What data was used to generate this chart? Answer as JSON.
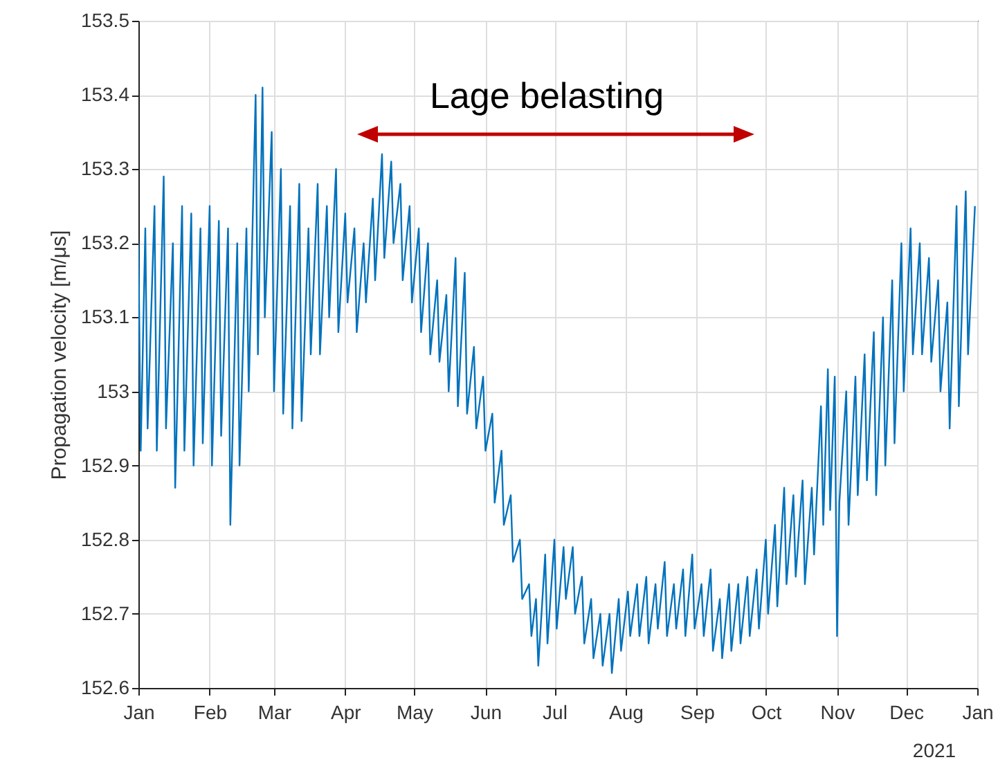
{
  "chart_data": {
    "type": "line",
    "ylabel": "Propagation velocity [m/μs]",
    "annotations": [
      "Lage belasting",
      "2021"
    ],
    "xlim": [
      "2021-01-01",
      "2022-01-01"
    ],
    "xticks": [
      {
        "value": "2021-01-01",
        "label": "Jan"
      },
      {
        "value": "2021-02-01",
        "label": "Feb"
      },
      {
        "value": "2021-03-01",
        "label": "Mar"
      },
      {
        "value": "2021-04-01",
        "label": "Apr"
      },
      {
        "value": "2021-05-01",
        "label": "May"
      },
      {
        "value": "2021-06-01",
        "label": "Jun"
      },
      {
        "value": "2021-07-01",
        "label": "Jul"
      },
      {
        "value": "2021-08-01",
        "label": "Aug"
      },
      {
        "value": "2021-09-01",
        "label": "Sep"
      },
      {
        "value": "2021-10-01",
        "label": "Oct"
      },
      {
        "value": "2021-11-01",
        "label": "Nov"
      },
      {
        "value": "2021-12-01",
        "label": "Dec"
      },
      {
        "value": "2022-01-01",
        "label": "Jan"
      }
    ],
    "ylim": [
      152.6,
      153.5
    ],
    "yticks": [
      152.6,
      152.7,
      152.8,
      152.9,
      153,
      153.1,
      153.2,
      153.3,
      153.4,
      153.5
    ],
    "grid": true,
    "line_style": "solid",
    "series": [
      {
        "color": "#0072bd",
        "x": [
          "2021-01-01",
          "2021-01-02",
          "2021-01-04",
          "2021-01-05",
          "2021-01-08",
          "2021-01-09",
          "2021-01-12",
          "2021-01-13",
          "2021-01-16",
          "2021-01-17",
          "2021-01-20",
          "2021-01-21",
          "2021-01-24",
          "2021-01-25",
          "2021-01-28",
          "2021-01-29",
          "2021-02-01",
          "2021-02-02",
          "2021-02-05",
          "2021-02-06",
          "2021-02-09",
          "2021-02-10",
          "2021-02-13",
          "2021-02-14",
          "2021-02-17",
          "2021-02-18",
          "2021-02-21",
          "2021-02-22",
          "2021-02-24",
          "2021-02-25",
          "2021-02-28",
          "2021-03-01",
          "2021-03-04",
          "2021-03-05",
          "2021-03-08",
          "2021-03-09",
          "2021-03-12",
          "2021-03-13",
          "2021-03-16",
          "2021-03-17",
          "2021-03-20",
          "2021-03-21",
          "2021-03-24",
          "2021-03-25",
          "2021-03-28",
          "2021-03-29",
          "2021-04-01",
          "2021-04-02",
          "2021-04-05",
          "2021-04-06",
          "2021-04-09",
          "2021-04-10",
          "2021-04-13",
          "2021-04-14",
          "2021-04-17",
          "2021-04-18",
          "2021-04-21",
          "2021-04-22",
          "2021-04-25",
          "2021-04-26",
          "2021-04-29",
          "2021-04-30",
          "2021-05-03",
          "2021-05-04",
          "2021-05-07",
          "2021-05-08",
          "2021-05-11",
          "2021-05-12",
          "2021-05-15",
          "2021-05-16",
          "2021-05-19",
          "2021-05-20",
          "2021-05-23",
          "2021-05-24",
          "2021-05-27",
          "2021-05-28",
          "2021-05-31",
          "2021-06-01",
          "2021-06-04",
          "2021-06-05",
          "2021-06-08",
          "2021-06-09",
          "2021-06-12",
          "2021-06-13",
          "2021-06-16",
          "2021-06-17",
          "2021-06-20",
          "2021-06-21",
          "2021-06-23",
          "2021-06-24",
          "2021-06-27",
          "2021-06-28",
          "2021-07-01",
          "2021-07-02",
          "2021-07-05",
          "2021-07-06",
          "2021-07-09",
          "2021-07-10",
          "2021-07-13",
          "2021-07-14",
          "2021-07-17",
          "2021-07-18",
          "2021-07-21",
          "2021-07-22",
          "2021-07-25",
          "2021-07-26",
          "2021-07-29",
          "2021-07-30",
          "2021-08-02",
          "2021-08-03",
          "2021-08-06",
          "2021-08-07",
          "2021-08-10",
          "2021-08-11",
          "2021-08-14",
          "2021-08-15",
          "2021-08-18",
          "2021-08-19",
          "2021-08-22",
          "2021-08-23",
          "2021-08-26",
          "2021-08-27",
          "2021-08-30",
          "2021-08-31",
          "2021-09-03",
          "2021-09-04",
          "2021-09-07",
          "2021-09-08",
          "2021-09-11",
          "2021-09-12",
          "2021-09-15",
          "2021-09-16",
          "2021-09-19",
          "2021-09-20",
          "2021-09-23",
          "2021-09-24",
          "2021-09-27",
          "2021-09-28",
          "2021-10-01",
          "2021-10-02",
          "2021-10-05",
          "2021-10-06",
          "2021-10-09",
          "2021-10-10",
          "2021-10-13",
          "2021-10-14",
          "2021-10-17",
          "2021-10-18",
          "2021-10-21",
          "2021-10-22",
          "2021-10-25",
          "2021-10-26",
          "2021-10-28",
          "2021-10-29",
          "2021-10-31",
          "2021-11-01",
          "2021-11-02",
          "2021-11-05",
          "2021-11-06",
          "2021-11-09",
          "2021-11-10",
          "2021-11-13",
          "2021-11-14",
          "2021-11-17",
          "2021-11-18",
          "2021-11-21",
          "2021-11-22",
          "2021-11-25",
          "2021-11-26",
          "2021-11-29",
          "2021-11-30",
          "2021-12-03",
          "2021-12-04",
          "2021-12-07",
          "2021-12-08",
          "2021-12-11",
          "2021-12-12",
          "2021-12-15",
          "2021-12-16",
          "2021-12-19",
          "2021-12-20",
          "2021-12-23",
          "2021-12-24",
          "2021-12-27",
          "2021-12-28",
          "2021-12-31"
        ],
        "values": [
          153.2,
          152.92,
          153.22,
          152.95,
          153.25,
          152.92,
          153.29,
          152.95,
          153.2,
          152.87,
          153.25,
          152.92,
          153.24,
          152.9,
          153.22,
          152.93,
          153.25,
          152.9,
          153.23,
          152.94,
          153.22,
          152.82,
          153.2,
          152.9,
          153.22,
          153.0,
          153.4,
          153.05,
          153.41,
          153.1,
          153.35,
          153.0,
          153.3,
          152.97,
          153.25,
          152.95,
          153.28,
          152.96,
          153.22,
          153.05,
          153.28,
          153.05,
          153.25,
          153.1,
          153.3,
          153.08,
          153.24,
          153.12,
          153.22,
          153.08,
          153.2,
          153.12,
          153.26,
          153.15,
          153.32,
          153.18,
          153.31,
          153.2,
          153.28,
          153.15,
          153.25,
          153.12,
          153.22,
          153.08,
          153.2,
          153.05,
          153.15,
          153.04,
          153.13,
          153.0,
          153.18,
          152.98,
          153.16,
          152.97,
          153.06,
          152.95,
          153.02,
          152.92,
          152.97,
          152.85,
          152.92,
          152.82,
          152.86,
          152.77,
          152.8,
          152.72,
          152.74,
          152.67,
          152.72,
          152.63,
          152.78,
          152.66,
          152.8,
          152.68,
          152.79,
          152.72,
          152.79,
          152.7,
          152.75,
          152.66,
          152.72,
          152.64,
          152.7,
          152.63,
          152.7,
          152.62,
          152.72,
          152.65,
          152.73,
          152.67,
          152.74,
          152.67,
          152.75,
          152.66,
          152.74,
          152.68,
          152.77,
          152.67,
          152.74,
          152.68,
          152.76,
          152.67,
          152.78,
          152.68,
          152.74,
          152.67,
          152.76,
          152.65,
          152.72,
          152.64,
          152.74,
          152.65,
          152.74,
          152.66,
          152.75,
          152.67,
          152.76,
          152.68,
          152.8,
          152.7,
          152.82,
          152.71,
          152.87,
          152.74,
          152.86,
          152.75,
          152.88,
          152.74,
          152.87,
          152.78,
          152.98,
          152.82,
          153.03,
          152.84,
          153.02,
          152.67,
          152.85,
          153.0,
          152.82,
          153.02,
          152.86,
          153.05,
          152.88,
          153.08,
          152.86,
          153.1,
          152.9,
          153.15,
          152.93,
          153.2,
          153.0,
          153.22,
          153.05,
          153.2,
          153.05,
          153.18,
          153.04,
          153.15,
          153.0,
          153.12,
          152.95,
          153.25,
          152.98,
          153.27,
          153.05,
          153.25
        ]
      }
    ]
  }
}
